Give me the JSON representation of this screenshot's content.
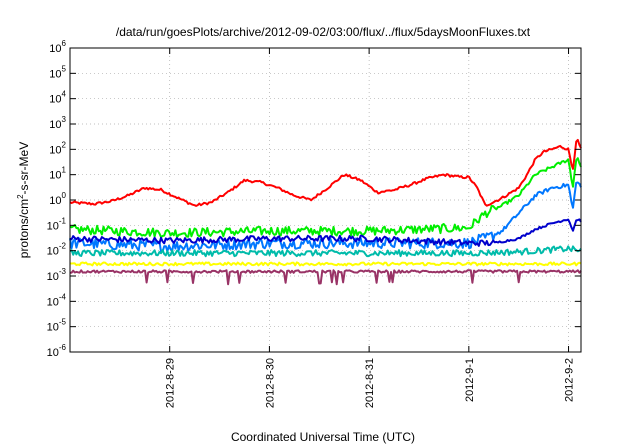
{
  "chart_data": {
    "type": "line",
    "title": "/data/run/goesPlots/archive/2012-09-02/03:00/flux/../flux/5daysMoonFluxes.txt",
    "xlabel": "Coordinated Universal Time (UTC)",
    "ylabel": "protons/cm²-s-sr-MeV",
    "ylabel_parts": {
      "pre": "protons/cm",
      "sup": "2",
      "post": "-s-sr-MeV"
    },
    "y_scale": "log",
    "ylim_exponents": [
      -6,
      6
    ],
    "y_ticks": [
      {
        "mantissa": "10",
        "exp": "-6"
      },
      {
        "mantissa": "10",
        "exp": "-5"
      },
      {
        "mantissa": "10",
        "exp": "-4"
      },
      {
        "mantissa": "10",
        "exp": "-3"
      },
      {
        "mantissa": "10",
        "exp": "-2"
      },
      {
        "mantissa": "10",
        "exp": "-1"
      },
      {
        "mantissa": "10",
        "exp": "0"
      },
      {
        "mantissa": "10",
        "exp": "1"
      },
      {
        "mantissa": "10",
        "exp": "2"
      },
      {
        "mantissa": "10",
        "exp": "3"
      },
      {
        "mantissa": "10",
        "exp": "4"
      },
      {
        "mantissa": "10",
        "exp": "5"
      },
      {
        "mantissa": "10",
        "exp": "6"
      }
    ],
    "x_range_days": [
      "2012-08-28 00:00",
      "2012-09-02 03:00"
    ],
    "x_tick_labels": [
      "2012-8-29",
      "2012-8-30",
      "2012-8-31",
      "2012-9-1",
      "2012-9-2"
    ],
    "grid": true,
    "legend": "none",
    "series": [
      {
        "color": "#ff0000",
        "noise": 0.05,
        "points": [
          [
            "2012-08-28 00:00",
            0.8
          ],
          [
            "2012-08-28 06:00",
            0.7
          ],
          [
            "2012-08-28 10:00",
            0.9
          ],
          [
            "2012-08-28 14:00",
            1.5
          ],
          [
            "2012-08-28 18:00",
            3.0
          ],
          [
            "2012-08-28 22:00",
            2.5
          ],
          [
            "2012-08-29 02:00",
            1.2
          ],
          [
            "2012-08-29 06:00",
            0.6
          ],
          [
            "2012-08-29 10:00",
            0.8
          ],
          [
            "2012-08-29 14:00",
            2.0
          ],
          [
            "2012-08-29 18:00",
            6.0
          ],
          [
            "2012-08-29 22:00",
            5.0
          ],
          [
            "2012-08-30 02:00",
            3.0
          ],
          [
            "2012-08-30 06:00",
            1.5
          ],
          [
            "2012-08-30 10:00",
            1.0
          ],
          [
            "2012-08-30 14:00",
            3.0
          ],
          [
            "2012-08-30 18:00",
            10.0
          ],
          [
            "2012-08-30 22:00",
            6.0
          ],
          [
            "2012-08-31 02:00",
            2.0
          ],
          [
            "2012-08-31 06:00",
            2.5
          ],
          [
            "2012-08-31 10:00",
            4.0
          ],
          [
            "2012-08-31 14:00",
            7.0
          ],
          [
            "2012-08-31 18:00",
            10.0
          ],
          [
            "2012-08-31 22:00",
            8.0
          ],
          [
            "2012-09-01 00:00",
            8.0
          ],
          [
            "2012-09-01 02:00",
            3.0
          ],
          [
            "2012-09-01 04:00",
            0.6
          ],
          [
            "2012-09-01 08:00",
            1.2
          ],
          [
            "2012-09-01 12:00",
            3.0
          ],
          [
            "2012-09-01 14:00",
            10.0
          ],
          [
            "2012-09-01 16:00",
            40.0
          ],
          [
            "2012-09-01 18:00",
            80.0
          ],
          [
            "2012-09-01 20:00",
            100.0
          ],
          [
            "2012-09-01 22:00",
            130.0
          ],
          [
            "2012-09-02 00:00",
            100.0
          ],
          [
            "2012-09-02 01:00",
            15.0
          ],
          [
            "2012-09-02 02:00",
            280.0
          ],
          [
            "2012-09-02 03:00",
            100.0
          ]
        ]
      },
      {
        "color": "#00ee00",
        "noise": 0.18,
        "points": [
          [
            "2012-08-28 00:00",
            0.07
          ],
          [
            "2012-08-29 00:00",
            0.05
          ],
          [
            "2012-08-30 00:00",
            0.06
          ],
          [
            "2012-08-31 00:00",
            0.06
          ],
          [
            "2012-09-01 00:00",
            0.08
          ],
          [
            "2012-09-01 04:00",
            0.3
          ],
          [
            "2012-09-01 08:00",
            0.6
          ],
          [
            "2012-09-01 12:00",
            1.5
          ],
          [
            "2012-09-01 16:00",
            10.0
          ],
          [
            "2012-09-01 20:00",
            20.0
          ],
          [
            "2012-09-02 00:00",
            40.0
          ],
          [
            "2012-09-02 01:00",
            3.0
          ],
          [
            "2012-09-02 02:00",
            60.0
          ],
          [
            "2012-09-02 03:00",
            20.0
          ]
        ]
      },
      {
        "color": "#0077ff",
        "noise": 0.22,
        "points": [
          [
            "2012-08-28 00:00",
            0.02
          ],
          [
            "2012-08-29 00:00",
            0.015
          ],
          [
            "2012-08-30 00:00",
            0.02
          ],
          [
            "2012-08-31 00:00",
            0.02
          ],
          [
            "2012-09-01 00:00",
            0.02
          ],
          [
            "2012-09-01 04:00",
            0.03
          ],
          [
            "2012-09-01 08:00",
            0.06
          ],
          [
            "2012-09-01 12:00",
            0.3
          ],
          [
            "2012-09-01 16:00",
            1.5
          ],
          [
            "2012-09-01 20:00",
            3.0
          ],
          [
            "2012-09-02 00:00",
            4.0
          ],
          [
            "2012-09-02 01:00",
            0.4
          ],
          [
            "2012-09-02 02:00",
            7.0
          ],
          [
            "2012-09-02 03:00",
            3.0
          ]
        ]
      },
      {
        "color": "#0000cc",
        "noise": 0.12,
        "points": [
          [
            "2012-08-28 00:00",
            0.03
          ],
          [
            "2012-08-29 00:00",
            0.025
          ],
          [
            "2012-08-30 00:00",
            0.03
          ],
          [
            "2012-08-31 00:00",
            0.03
          ],
          [
            "2012-09-01 00:00",
            0.02
          ],
          [
            "2012-09-01 06:00",
            0.02
          ],
          [
            "2012-09-01 12:00",
            0.03
          ],
          [
            "2012-09-01 16:00",
            0.07
          ],
          [
            "2012-09-01 20:00",
            0.12
          ],
          [
            "2012-09-02 00:00",
            0.18
          ],
          [
            "2012-09-02 01:00",
            0.06
          ],
          [
            "2012-09-02 02:00",
            0.18
          ],
          [
            "2012-09-02 03:00",
            0.15
          ]
        ]
      },
      {
        "color": "#00bbaa",
        "noise": 0.12,
        "points": [
          [
            "2012-08-28 00:00",
            0.008
          ],
          [
            "2012-08-30 00:00",
            0.008
          ],
          [
            "2012-09-01 00:00",
            0.008
          ],
          [
            "2012-09-01 12:00",
            0.009
          ],
          [
            "2012-09-02 00:00",
            0.012
          ],
          [
            "2012-09-02 03:00",
            0.01
          ]
        ]
      },
      {
        "color": "#ffff00",
        "noise": 0.06,
        "points": [
          [
            "2012-08-28 00:00",
            0.003
          ],
          [
            "2012-08-30 00:00",
            0.003
          ],
          [
            "2012-09-01 00:00",
            0.003
          ],
          [
            "2012-09-02 03:00",
            0.003
          ]
        ]
      },
      {
        "color": "#993366",
        "noise": 0.05,
        "dips": true,
        "points": [
          [
            "2012-08-28 00:00",
            0.0015
          ],
          [
            "2012-08-30 00:00",
            0.0015
          ],
          [
            "2012-09-01 00:00",
            0.0015
          ],
          [
            "2012-09-02 03:00",
            0.0015
          ]
        ]
      }
    ]
  }
}
